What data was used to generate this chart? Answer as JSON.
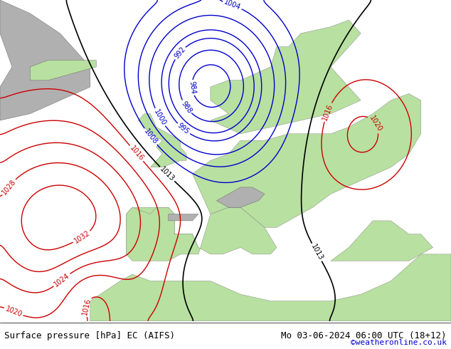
{
  "title_left": "Surface pressure [hPa] EC (AIFS)",
  "title_right": "Mo 03-06-2024 06:00 UTC (18+12)",
  "credit": "©weatheronline.co.uk",
  "background_color": "#d0e8ff",
  "land_color": "#b8e0a0",
  "ocean_color": "#d0e8ff",
  "mountain_color": "#b0b0b0",
  "isobar_color_low": "#0000cc",
  "isobar_color_high": "#cc0000",
  "isobar_color_1013": "#000000",
  "text_color_bottom": "#000000",
  "credit_color": "#0000cc",
  "figsize": [
    6.34,
    4.9
  ],
  "dpi": 100
}
